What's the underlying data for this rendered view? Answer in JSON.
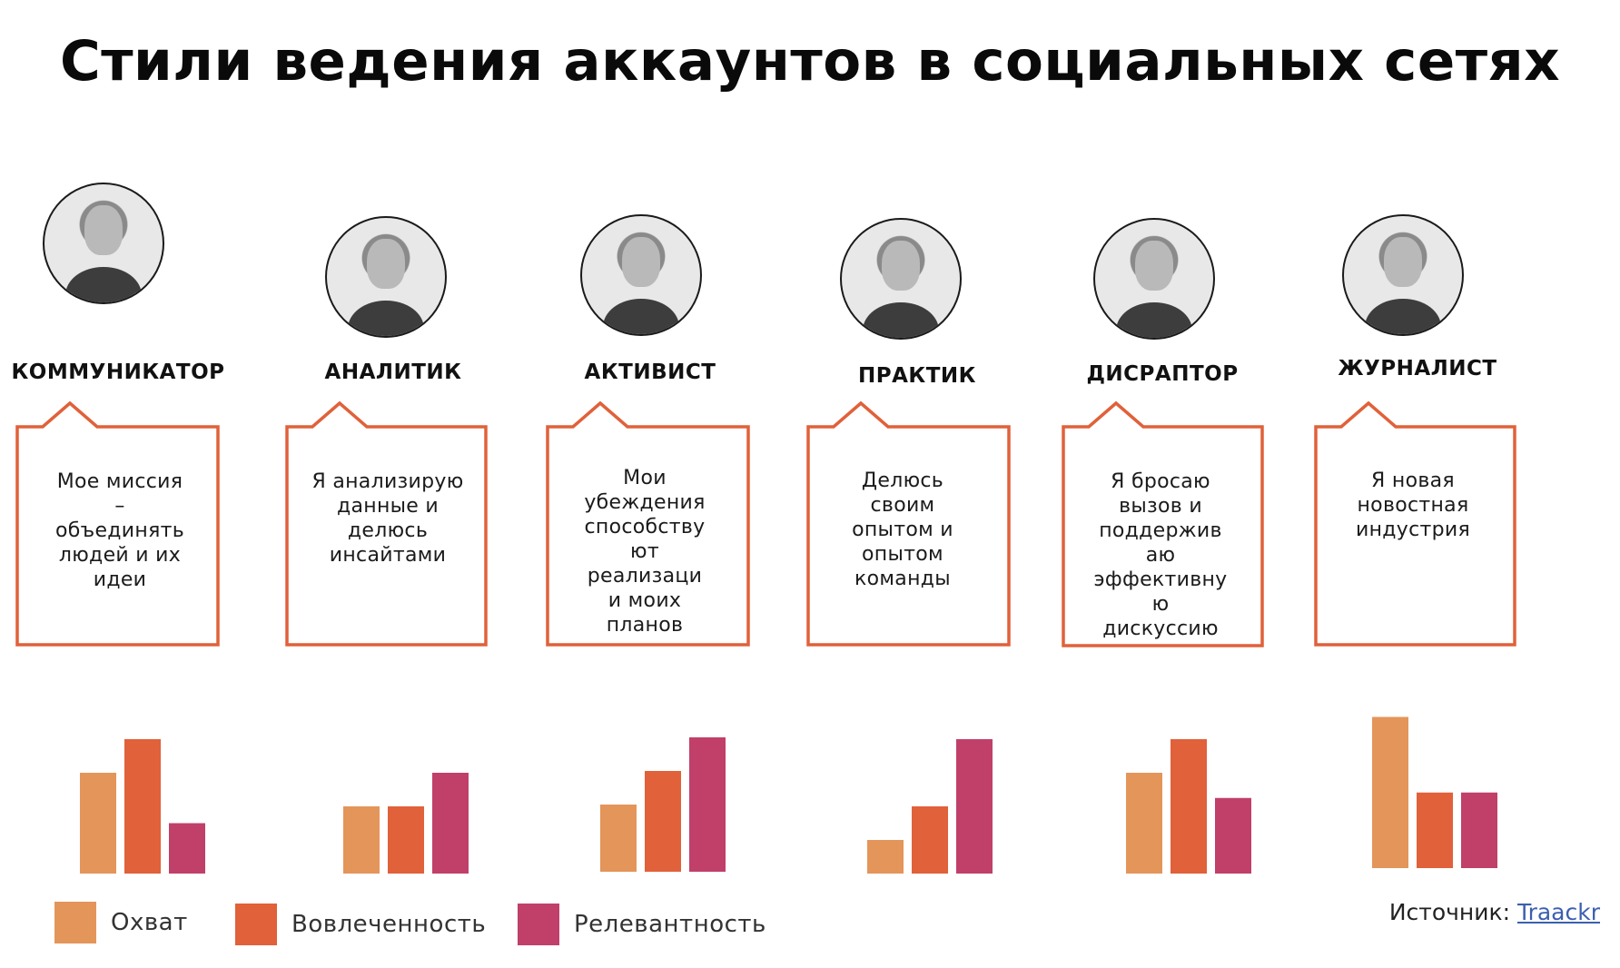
{
  "title": "Стили ведения аккаунтов в социальных сетях",
  "personas": [
    {
      "role": "КОММУНИКАТОР",
      "quote": [
        "Мое миссия",
        "–",
        "объединять",
        "людей и их",
        "идеи"
      ]
    },
    {
      "role": "АНАЛИТИК",
      "quote": [
        "Я анализирую",
        "данные и",
        "делюсь",
        "инсайтами"
      ]
    },
    {
      "role": "АКТИВИСТ",
      "quote": [
        "Мои",
        "убеждения",
        "способству",
        "ют",
        "реализаци",
        "и моих",
        "планов"
      ]
    },
    {
      "role": "ПРАКТИК",
      "quote": [
        "Делюсь",
        "своим",
        "опытом и",
        "опытом",
        "команды"
      ]
    },
    {
      "role": "ДИСРАПТОР",
      "quote": [
        "Я бросаю",
        "вызов и",
        "поддержив",
        "аю",
        "эффективну",
        "ю",
        "дискуссию"
      ]
    },
    {
      "role": "ЖУРНАЛИСТ",
      "quote": [
        "Я новая",
        "новостная",
        "индустрия"
      ]
    }
  ],
  "chart_data": {
    "type": "bar",
    "categories": [
      "КОММУНИКАТОР",
      "АНАЛИТИК",
      "АКТИВИСТ",
      "ПРАКТИК",
      "ДИСРАПТОР",
      "ЖУРНАЛИСТ"
    ],
    "series": [
      {
        "name": "Охват",
        "color": "#E4955A",
        "values": [
          3,
          2,
          2,
          1,
          3,
          4.5
        ]
      },
      {
        "name": "Вовлеченность",
        "color": "#E0613A",
        "values": [
          4,
          2,
          3,
          2,
          4,
          2.25
        ]
      },
      {
        "name": "Релевантность",
        "color": "#C0406A",
        "values": [
          1.5,
          3,
          4,
          4,
          2.25,
          2.25
        ]
      }
    ],
    "ylim": [
      0,
      5
    ]
  },
  "legend": [
    {
      "label": "Охват",
      "color": "#E4955A"
    },
    {
      "label": "Вовлеченность",
      "color": "#E0613A"
    },
    {
      "label": "Релевантность",
      "color": "#C0406A"
    }
  ],
  "source": {
    "label": "Источник:",
    "link": "Traackr"
  },
  "colors": {
    "bubble_border": "#E0613A"
  }
}
